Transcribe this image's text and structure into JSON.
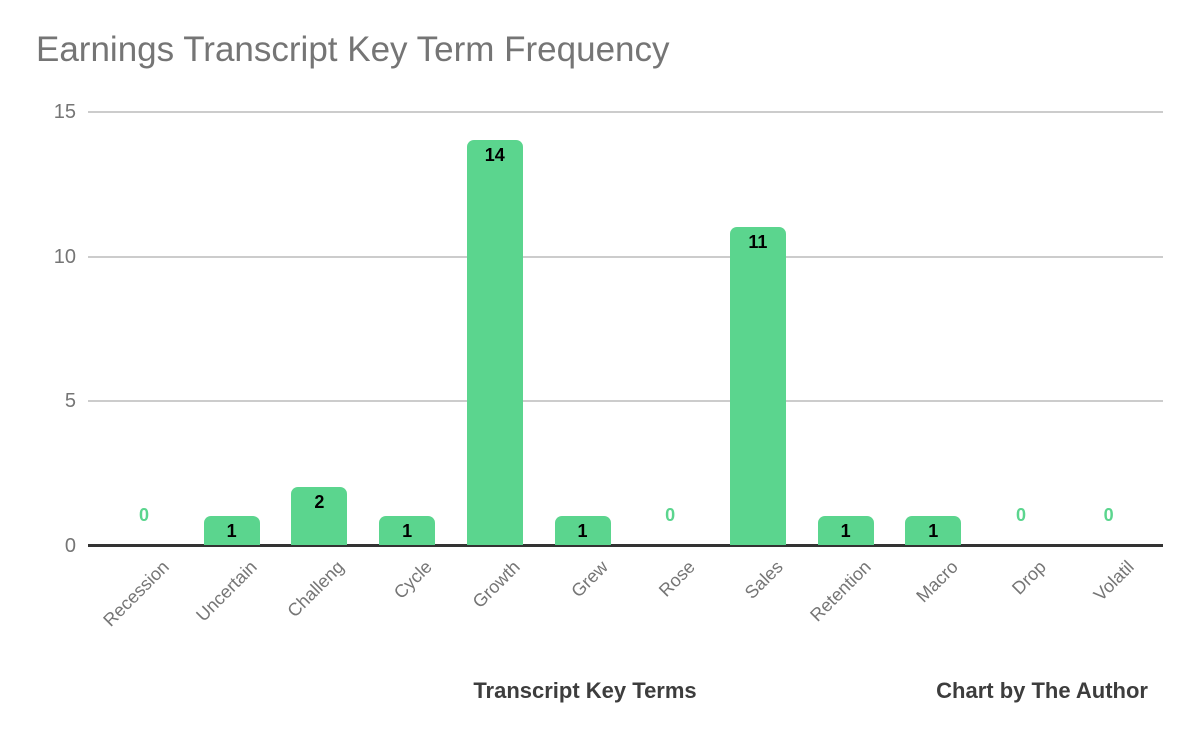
{
  "chart_data": {
    "type": "bar",
    "title": "Earnings Transcript Key Term Frequency",
    "xlabel": "Transcript Key Terms",
    "ylabel": "",
    "annotation": "Chart by The Author",
    "categories": [
      "Recession",
      "Uncertain",
      "Challeng",
      "Cycle",
      "Growth",
      "Grew",
      "Rose",
      "Sales",
      "Retention",
      "Macro",
      "Drop",
      "Volatil"
    ],
    "values": [
      0,
      1,
      2,
      1,
      14,
      1,
      0,
      11,
      1,
      1,
      0,
      0
    ],
    "yticks": [
      0,
      5,
      10,
      15
    ],
    "ylim": [
      0,
      15
    ],
    "grid": true,
    "legend": "none",
    "bar_color": "#5bd58e",
    "zero_label_color": "#5bd58e",
    "value_label_color": "#000000",
    "axis_text_color": "#757575",
    "title_color": "#757575",
    "gridline_color": "#cccccc",
    "baseline_color": "#333333"
  }
}
